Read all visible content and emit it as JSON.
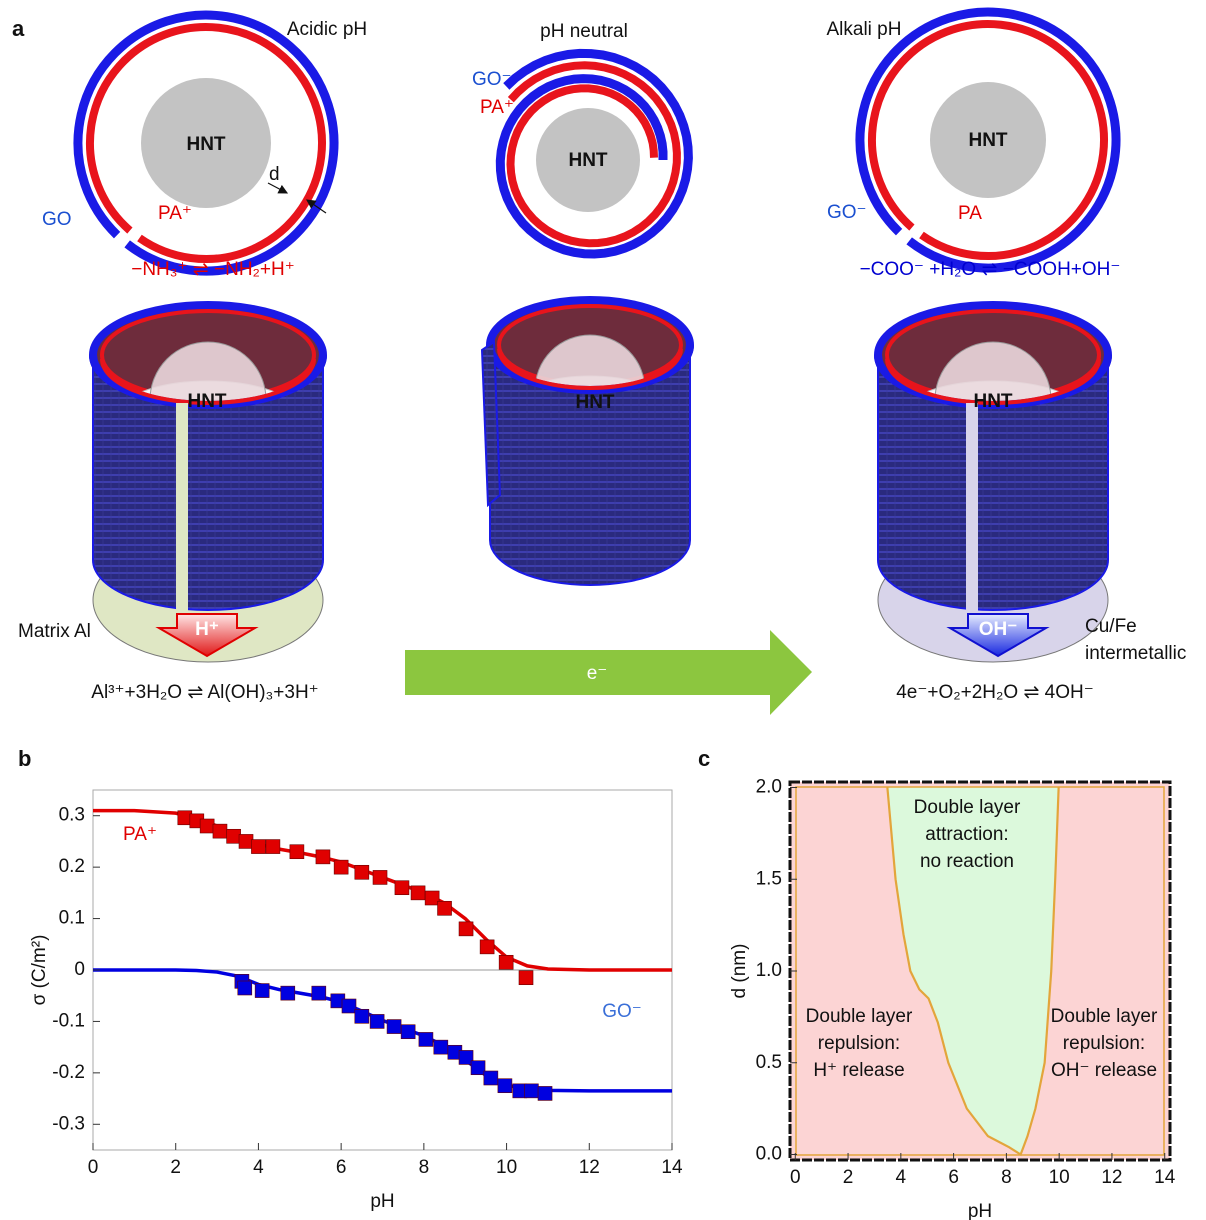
{
  "panel_a": {
    "label": "a",
    "states": [
      {
        "title": "Acidic pH",
        "outer_label": "GO",
        "inner_label": "PA⁺",
        "core": "HNT",
        "core_3d": "HNT",
        "equation": "−NH₃⁺ ⇌ −NH₂+H⁺",
        "release": "H⁺",
        "substrate": [
          "Matrix Al"
        ],
        "substrate_reaction": "Al³⁺+3H₂O ⇌ Al(OH)₃+3H⁺"
      },
      {
        "title": "pH neutral",
        "outer_label": "GO⁻",
        "inner_label": "PA⁺",
        "core": "HNT",
        "core_3d": "HNT"
      },
      {
        "title": "Alkali pH",
        "outer_label": "GO⁻",
        "inner_label": "PA",
        "core": "HNT",
        "core_3d": "HNT",
        "equation": "−COO⁻ +H₂O ⇌ −COOH+OH⁻",
        "release": "OH⁻",
        "substrate": [
          "Cu/Fe",
          "intermetallic"
        ],
        "substrate_reaction": "4e⁻+O₂+2H₂O ⇌ 4OH⁻"
      }
    ],
    "spacing_label": "d",
    "electron_flow": "e⁻"
  },
  "chart_data": [
    {
      "type": "line",
      "label": "b",
      "x_label": "pH",
      "y_label": "σ (C/m²)",
      "xlim": [
        0,
        14
      ],
      "xticks": [
        0,
        2,
        4,
        6,
        8,
        10,
        12,
        14
      ],
      "ylim": [
        -0.35,
        0.35
      ],
      "yticks": [
        -0.3,
        -0.2,
        -0.1,
        0,
        0.1,
        0.2,
        0.3
      ],
      "series": [
        {
          "name": "PA⁺",
          "color": "#e00000",
          "x": [
            2.22,
            2.51,
            2.76,
            3.07,
            3.4,
            3.7,
            4.0,
            4.35,
            4.93,
            5.56,
            6.0,
            6.5,
            6.94,
            7.47,
            7.86,
            8.2,
            8.5,
            9.02,
            9.53,
            9.99,
            10.47
          ],
          "values": [
            0.296,
            0.29,
            0.28,
            0.27,
            0.26,
            0.25,
            0.24,
            0.24,
            0.23,
            0.22,
            0.2,
            0.19,
            0.18,
            0.16,
            0.15,
            0.14,
            0.12,
            0.08,
            0.045,
            0.015,
            -0.015
          ],
          "fit_x": [
            0,
            1,
            2,
            2.5,
            3,
            3.5,
            4,
            4.5,
            5,
            5.5,
            6,
            6.5,
            7,
            7.5,
            8,
            8.5,
            9,
            9.5,
            10,
            10.5,
            11,
            12,
            13,
            14
          ],
          "fit_values": [
            0.31,
            0.31,
            0.305,
            0.295,
            0.28,
            0.26,
            0.245,
            0.235,
            0.228,
            0.22,
            0.21,
            0.195,
            0.18,
            0.165,
            0.15,
            0.13,
            0.1,
            0.06,
            0.025,
            0.008,
            0.002,
            0,
            0,
            0
          ]
        },
        {
          "name": "GO⁻",
          "color": "#0000e0",
          "x": [
            3.6,
            3.67,
            4.09,
            4.71,
            5.46,
            5.92,
            6.19,
            6.5,
            6.87,
            7.28,
            7.62,
            8.05,
            8.41,
            8.75,
            9.02,
            9.31,
            9.62,
            9.96,
            10.32,
            10.6,
            10.93
          ],
          "values": [
            -0.022,
            -0.035,
            -0.04,
            -0.045,
            -0.045,
            -0.06,
            -0.07,
            -0.09,
            -0.1,
            -0.11,
            -0.12,
            -0.135,
            -0.15,
            -0.16,
            -0.17,
            -0.19,
            -0.21,
            -0.225,
            -0.235,
            -0.235,
            -0.24
          ],
          "fit_x": [
            0,
            1,
            2,
            2.5,
            3,
            3.5,
            4,
            4.5,
            5,
            5.5,
            6,
            6.5,
            7,
            7.5,
            8,
            8.5,
            9,
            9.5,
            10,
            10.5,
            11,
            12,
            13,
            14
          ],
          "fit_values": [
            0,
            0,
            0,
            -0.001,
            -0.004,
            -0.012,
            -0.028,
            -0.038,
            -0.045,
            -0.052,
            -0.062,
            -0.08,
            -0.098,
            -0.113,
            -0.128,
            -0.148,
            -0.175,
            -0.205,
            -0.224,
            -0.232,
            -0.234,
            -0.235,
            -0.235,
            -0.235
          ]
        }
      ]
    },
    {
      "type": "region",
      "label": "c",
      "x_label": "pH",
      "y_label": "d (nm)",
      "xlim": [
        -0.2,
        14.2
      ],
      "xticks": [
        0,
        2,
        4,
        6,
        8,
        10,
        12,
        14
      ],
      "ylim": [
        -0.03,
        2.03
      ],
      "yticks": [
        {
          "value": 0,
          "label": "0.0"
        },
        0.5,
        {
          "value": 1,
          "label": "1.0"
        },
        1.5,
        {
          "value": 2,
          "label": "2.0"
        }
      ],
      "boundary": {
        "color": "#e3a53b",
        "x": [
          3.49,
          3.8,
          4.1,
          4.36,
          4.7,
          5.05,
          5.4,
          5.8,
          6.5,
          7.3,
          8.1,
          8.54,
          8.8,
          9.1,
          9.45,
          9.7,
          9.85,
          9.98
        ],
        "values": [
          2.0,
          1.5,
          1.2,
          1.0,
          0.9,
          0.85,
          0.72,
          0.5,
          0.25,
          0.1,
          0.04,
          0.0,
          0.1,
          0.25,
          0.5,
          1.0,
          1.5,
          2.0
        ]
      },
      "regions": [
        {
          "text": [
            "Double layer",
            "attraction:",
            "no reaction"
          ],
          "color": "#dcf9dc"
        },
        {
          "text": [
            "Double layer",
            "repulsion:",
            "H⁺ release"
          ],
          "color": "#fcd4d4"
        },
        {
          "text": [
            "Double layer",
            "repulsion:",
            "OH⁻ release"
          ],
          "color": "#fcd4d4"
        }
      ]
    }
  ]
}
